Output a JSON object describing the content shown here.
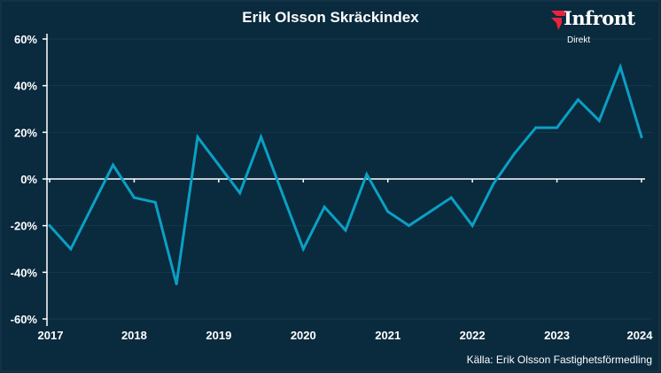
{
  "chart_data": {
    "type": "line",
    "title": "Erik Olsson Skräckindex",
    "xlabel": "",
    "ylabel": "",
    "x_ticks": [
      "2017",
      "2018",
      "2019",
      "2020",
      "2021",
      "2022",
      "2023",
      "2024"
    ],
    "y_ticks": [
      "-60%",
      "-40%",
      "-20%",
      "0%",
      "20%",
      "40%",
      "60%"
    ],
    "ylim": [
      -60,
      60
    ],
    "xlim": [
      2017,
      2024
    ],
    "grid": true,
    "series": [
      {
        "name": "Skräckindex",
        "color": "#0aa0c4",
        "x": [
          2017,
          2017.25,
          2017.5,
          2017.75,
          2018,
          2018.25,
          2018.5,
          2018.75,
          2019,
          2019.25,
          2019.5,
          2019.75,
          2020,
          2020.25,
          2020.5,
          2020.75,
          2021,
          2021.25,
          2021.5,
          2021.75,
          2022,
          2022.25,
          2022.5,
          2022.75,
          2023,
          2023.25,
          2023.5,
          2023.75,
          2024
        ],
        "values": [
          -20,
          -30,
          -12,
          6,
          -8,
          -10,
          -45,
          18,
          6,
          -6,
          18,
          -6,
          -30,
          -12,
          -22,
          2,
          -14,
          -20,
          -14,
          -8,
          -20,
          -2,
          11,
          22,
          22,
          34,
          25,
          48,
          18
        ]
      }
    ],
    "source": "Källa: Erik Olsson Fastighetsförmedling"
  },
  "logo": {
    "name": "Infront",
    "sub": "Direkt"
  }
}
